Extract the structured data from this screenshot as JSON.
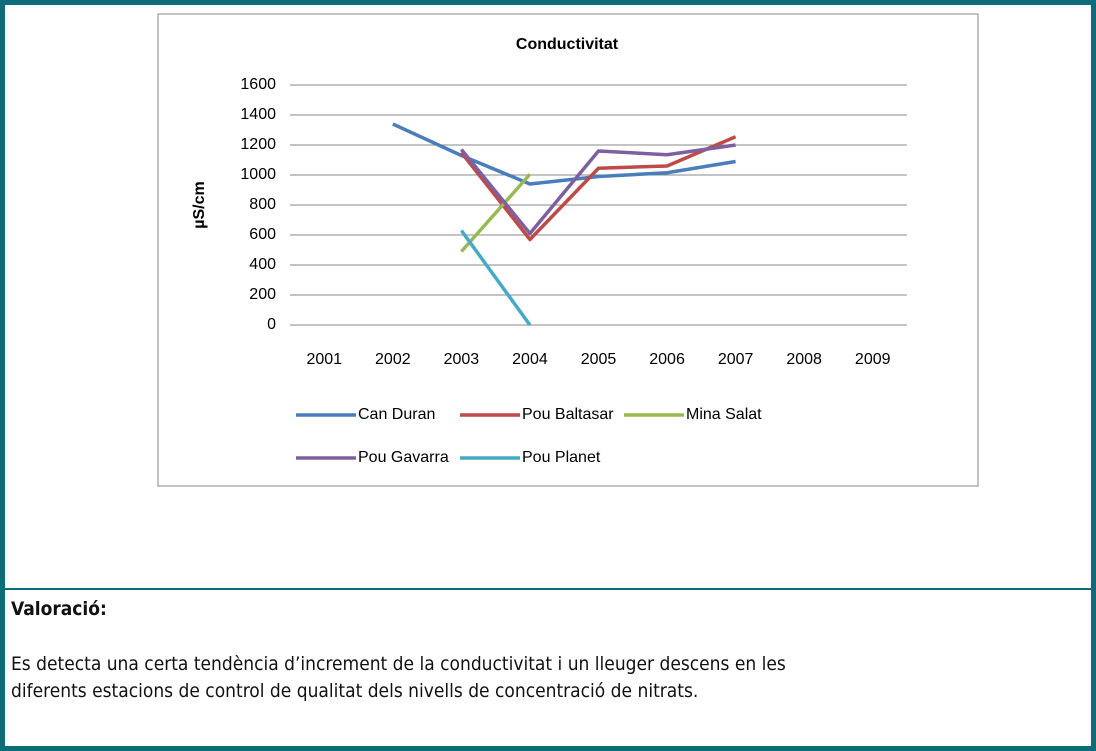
{
  "chart_data": {
    "type": "line",
    "title": "Conductivitat",
    "y_label": "µS/cm",
    "categories": [
      "2001",
      "2002",
      "2003",
      "2004",
      "2005",
      "2006",
      "2007",
      "2008",
      "2009"
    ],
    "series": [
      {
        "name": "Can Duran",
        "color": "#4a7ebb",
        "values": [
          null,
          1340,
          1130,
          940,
          990,
          1015,
          1090,
          null,
          null
        ]
      },
      {
        "name": "Pou Baltasar",
        "color": "#be4b48",
        "values": [
          null,
          null,
          1150,
          570,
          1045,
          1060,
          1255,
          null,
          null
        ]
      },
      {
        "name": "Mina Salat",
        "color": "#98b954",
        "values": [
          null,
          null,
          490,
          1005,
          null,
          null,
          null,
          null,
          null
        ]
      },
      {
        "name": "Pou Gavarra",
        "color": "#7d60a0",
        "values": [
          null,
          null,
          1170,
          610,
          1160,
          1135,
          1200,
          null,
          null
        ]
      },
      {
        "name": "Pou Planet",
        "color": "#46aac5",
        "values": [
          null,
          null,
          630,
          0,
          null,
          null,
          null,
          null,
          null
        ]
      }
    ],
    "ylim": [
      0,
      1600
    ],
    "yticks": [
      0,
      200,
      400,
      600,
      800,
      1000,
      1200,
      1400,
      1600
    ],
    "grid": true
  },
  "assessment": {
    "heading": "Valoració:",
    "lines": [
      "Es detecta una certa tendència d’increment de la conductivitat i un lleuger descens en les",
      "diferents estacions de control de qualitat dels nivells de concentració de nitrats."
    ]
  }
}
